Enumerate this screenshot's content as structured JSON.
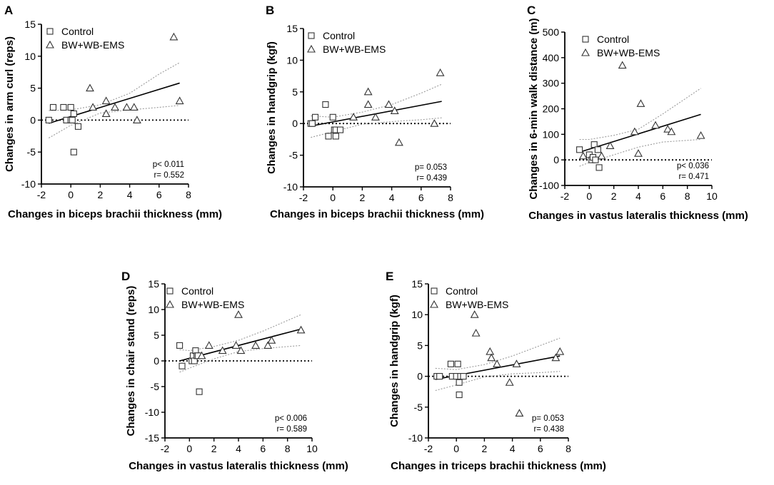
{
  "figure": {
    "legend_control": "Control",
    "legend_ems": "BW+WB-EMS"
  },
  "chart_data": [
    {
      "panel": "A",
      "type": "scatter",
      "xlabel": "Changes in biceps brachii thickness (mm)",
      "ylabel": "Changes in arm curl (reps)",
      "xlim": [
        -2,
        8
      ],
      "ylim": [
        -10,
        15
      ],
      "xticks": [
        -2,
        0,
        2,
        4,
        6,
        8
      ],
      "yticks": [
        -10,
        -5,
        0,
        5,
        10,
        15
      ],
      "stats": [
        "p< 0.011",
        "r=  0.552"
      ],
      "series": [
        {
          "name": "Control",
          "marker": "square",
          "points": [
            [
              -1.5,
              0
            ],
            [
              -1.2,
              2
            ],
            [
              -0.5,
              2
            ],
            [
              -0.3,
              0
            ],
            [
              0,
              2
            ],
            [
              0,
              0
            ],
            [
              0.1,
              0
            ],
            [
              0.2,
              1
            ],
            [
              0.5,
              -1
            ],
            [
              0.2,
              -5
            ]
          ]
        },
        {
          "name": "BW+WB-EMS",
          "marker": "triangle",
          "points": [
            [
              1.3,
              5
            ],
            [
              1.5,
              2
            ],
            [
              2.4,
              3
            ],
            [
              2.4,
              1
            ],
            [
              3.0,
              2
            ],
            [
              3.8,
              2
            ],
            [
              4.3,
              2
            ],
            [
              4.5,
              0
            ],
            [
              7.0,
              13
            ],
            [
              7.4,
              3
            ]
          ]
        }
      ],
      "fit": {
        "x": [
          -1.5,
          7.4
        ],
        "y": [
          -0.5,
          5.8
        ]
      },
      "ci_upper": {
        "x": [
          -1.5,
          0,
          2,
          4,
          6,
          7.4
        ],
        "y": [
          1.5,
          1.6,
          2.4,
          4.2,
          7.2,
          9.0
        ]
      },
      "ci_lower": {
        "x": [
          -1.5,
          0,
          2,
          4,
          6,
          7.4
        ],
        "y": [
          -2.8,
          -0.8,
          1.1,
          1.6,
          2.0,
          2.3
        ]
      }
    },
    {
      "panel": "B",
      "type": "scatter",
      "xlabel": "Changes in biceps brachii thickness (mm)",
      "ylabel": "Changes in handgrip (kgf)",
      "xlim": [
        -2,
        8
      ],
      "ylim": [
        -10,
        15
      ],
      "xticks": [
        -2,
        0,
        2,
        4,
        6,
        8
      ],
      "yticks": [
        -10,
        -5,
        0,
        5,
        10,
        15
      ],
      "stats": [
        "p= 0.053",
        "r=  0.439"
      ],
      "series": [
        {
          "name": "Control",
          "marker": "square",
          "points": [
            [
              -1.5,
              0
            ],
            [
              -1.2,
              1
            ],
            [
              -0.5,
              3
            ],
            [
              -0.3,
              -2
            ],
            [
              0,
              1
            ],
            [
              0.1,
              -1
            ],
            [
              0.2,
              -1
            ],
            [
              0.2,
              -2
            ],
            [
              0.5,
              -1
            ],
            [
              -1.4,
              0
            ]
          ]
        },
        {
          "name": "BW+WB-EMS",
          "marker": "triangle",
          "points": [
            [
              1.4,
              1
            ],
            [
              2.4,
              5
            ],
            [
              2.4,
              3
            ],
            [
              2.9,
              1
            ],
            [
              3.8,
              3
            ],
            [
              4.2,
              2
            ],
            [
              4.5,
              -3
            ],
            [
              6.9,
              0
            ],
            [
              7.3,
              8
            ]
          ]
        }
      ],
      "fit": {
        "x": [
          -1.5,
          7.4
        ],
        "y": [
          -0.4,
          3.5
        ]
      },
      "ci_upper": {
        "x": [
          -1.5,
          0,
          2,
          4,
          6,
          7.4
        ],
        "y": [
          1.2,
          1.0,
          1.8,
          3.0,
          4.8,
          6.2
        ]
      },
      "ci_lower": {
        "x": [
          -1.5,
          0,
          2,
          4,
          6,
          7.4
        ],
        "y": [
          -2.2,
          -1.3,
          -0.1,
          0.3,
          0.6,
          0.9
        ]
      }
    },
    {
      "panel": "C",
      "type": "scatter",
      "xlabel": "Changes in vastus lateralis thickness (mm)",
      "ylabel": "Changes in 6-min walk distance (m)",
      "xlim": [
        -2,
        10
      ],
      "ylim": [
        -100,
        500
      ],
      "xticks": [
        -2,
        0,
        2,
        4,
        6,
        8,
        10
      ],
      "yticks": [
        -100,
        0,
        100,
        200,
        300,
        400,
        500
      ],
      "stats": [
        "p< 0.036",
        "r=  0.471"
      ],
      "series": [
        {
          "name": "Control",
          "marker": "square",
          "points": [
            [
              -0.8,
              40
            ],
            [
              0,
              20
            ],
            [
              0.2,
              0
            ],
            [
              0.3,
              10
            ],
            [
              0.4,
              60
            ],
            [
              0.5,
              0
            ],
            [
              0.7,
              40
            ],
            [
              0.8,
              -30
            ]
          ]
        },
        {
          "name": "BW+WB-EMS",
          "marker": "triangle",
          "points": [
            [
              -0.5,
              15
            ],
            [
              1.0,
              15
            ],
            [
              1.7,
              55
            ],
            [
              2.7,
              370
            ],
            [
              3.7,
              110
            ],
            [
              4.0,
              25
            ],
            [
              4.2,
              220
            ],
            [
              5.4,
              135
            ],
            [
              6.4,
              120
            ],
            [
              6.7,
              110
            ],
            [
              9.1,
              95
            ]
          ]
        }
      ],
      "fit": {
        "x": [
          -0.8,
          9.1
        ],
        "y": [
          30,
          178
        ]
      },
      "ci_upper": {
        "x": [
          -0.8,
          0,
          2,
          4,
          6,
          9.1
        ],
        "y": [
          80,
          80,
          96,
          120,
          180,
          280
        ]
      },
      "ci_lower": {
        "x": [
          -0.8,
          0,
          2,
          4,
          6,
          9.1
        ],
        "y": [
          -25,
          -10,
          20,
          50,
          70,
          80
        ]
      }
    },
    {
      "panel": "D",
      "type": "scatter",
      "xlabel": "Changes in vastus lateralis thickness (mm)",
      "ylabel": "Changes in chair stand (reps)",
      "xlim": [
        -2,
        10
      ],
      "ylim": [
        -15,
        15
      ],
      "xticks": [
        -2,
        0,
        2,
        4,
        6,
        8,
        10
      ],
      "yticks": [
        -15,
        -10,
        -5,
        0,
        5,
        10,
        15
      ],
      "stats": [
        "p< 0.006",
        "r=  0.589"
      ],
      "series": [
        {
          "name": "Control",
          "marker": "square",
          "points": [
            [
              -0.8,
              3
            ],
            [
              -0.6,
              -1
            ],
            [
              0.2,
              0
            ],
            [
              0.3,
              1
            ],
            [
              0.4,
              0
            ],
            [
              0.5,
              2
            ],
            [
              0.6,
              1
            ],
            [
              0.7,
              1
            ],
            [
              0.8,
              -6
            ]
          ]
        },
        {
          "name": "BW+WB-EMS",
          "marker": "triangle",
          "points": [
            [
              1.0,
              1
            ],
            [
              1.6,
              3
            ],
            [
              2.7,
              2
            ],
            [
              3.8,
              3
            ],
            [
              4.0,
              9
            ],
            [
              4.2,
              2
            ],
            [
              5.4,
              3
            ],
            [
              6.4,
              3
            ],
            [
              6.7,
              4
            ],
            [
              9.1,
              6
            ]
          ]
        }
      ],
      "fit": {
        "x": [
          -0.8,
          9.1
        ],
        "y": [
          0,
          6.2
        ]
      },
      "ci_upper": {
        "x": [
          -0.8,
          0,
          2,
          4,
          6,
          9.1
        ],
        "y": [
          2.2,
          2.0,
          2.8,
          4.0,
          5.8,
          9.0
        ]
      },
      "ci_lower": {
        "x": [
          -0.8,
          0,
          2,
          4,
          6,
          9.1
        ],
        "y": [
          -2.2,
          -1.4,
          0.4,
          1.8,
          2.4,
          3.0
        ]
      }
    },
    {
      "panel": "E",
      "type": "scatter",
      "xlabel": "Changes in triceps brachii thickness (mm)",
      "ylabel": "Changes in handgrip (kgf)",
      "xlim": [
        -2,
        8
      ],
      "ylim": [
        -10,
        15
      ],
      "xticks": [
        -2,
        0,
        2,
        4,
        6,
        8
      ],
      "yticks": [
        -10,
        -5,
        0,
        5,
        10,
        15
      ],
      "stats": [
        "p= 0.053",
        "r=  0.438"
      ],
      "series": [
        {
          "name": "Control",
          "marker": "square",
          "points": [
            [
              -1.4,
              0
            ],
            [
              -1.2,
              0
            ],
            [
              -0.4,
              2
            ],
            [
              -0.3,
              0
            ],
            [
              0,
              0
            ],
            [
              0.1,
              2
            ],
            [
              0.2,
              -1
            ],
            [
              0.3,
              0
            ],
            [
              0.2,
              -3
            ],
            [
              0.5,
              0
            ]
          ]
        },
        {
          "name": "BW+WB-EMS",
          "marker": "triangle",
          "points": [
            [
              1.3,
              10
            ],
            [
              1.4,
              7
            ],
            [
              2.4,
              4
            ],
            [
              2.5,
              3
            ],
            [
              2.9,
              2
            ],
            [
              3.8,
              -1
            ],
            [
              4.3,
              2
            ],
            [
              4.5,
              -6
            ],
            [
              7.1,
              3
            ],
            [
              7.4,
              4
            ]
          ]
        }
      ],
      "fit": {
        "x": [
          -1.5,
          7.4
        ],
        "y": [
          -0.5,
          3.3
        ]
      },
      "ci_upper": {
        "x": [
          -1.5,
          0,
          2,
          4,
          6,
          7.4
        ],
        "y": [
          1.3,
          1.1,
          1.9,
          3.3,
          5.0,
          6.2
        ]
      },
      "ci_lower": {
        "x": [
          -1.5,
          0,
          2,
          4,
          6,
          7.4
        ],
        "y": [
          -2.3,
          -1.4,
          -0.1,
          0.4,
          0.6,
          0.8
        ]
      }
    }
  ]
}
